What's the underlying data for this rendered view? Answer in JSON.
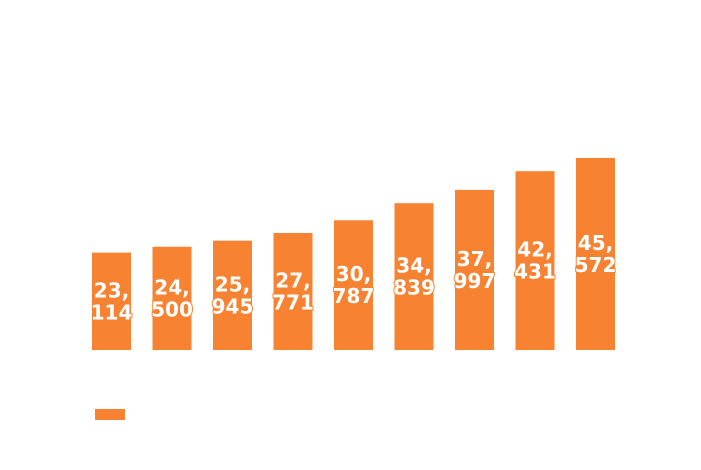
{
  "chart_data": {
    "type": "bar",
    "categories": [
      null,
      null,
      null,
      null,
      null,
      null,
      null,
      null,
      null
    ],
    "values": [
      23114,
      24500,
      25945,
      27771,
      30787,
      34839,
      37997,
      42431,
      45572
    ],
    "value_labels": [
      "23,114",
      "24,500",
      "25,945",
      "27,771",
      "30,787",
      "34,839",
      "37,997",
      "42,431",
      "45,572"
    ],
    "color": "#f78332",
    "ylim": [
      0,
      50000
    ]
  }
}
